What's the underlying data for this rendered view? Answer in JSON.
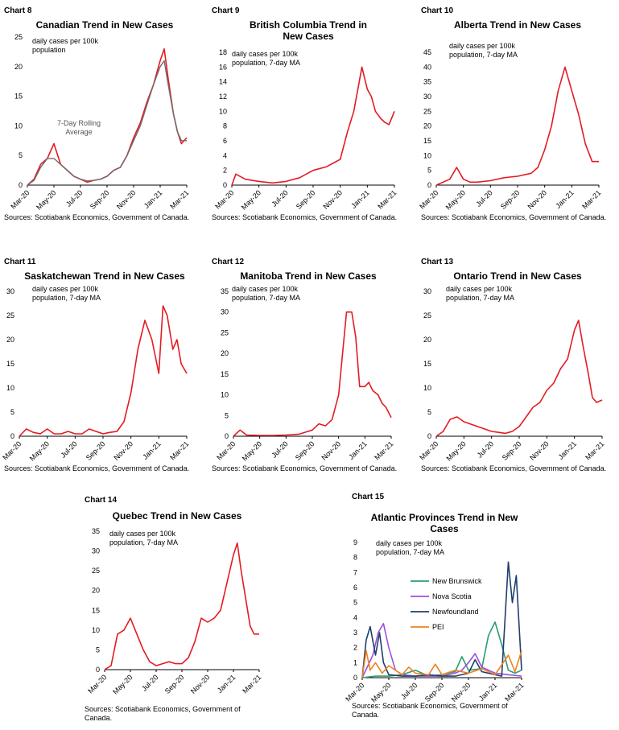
{
  "page": {
    "sources": "Sources: Scotiabank Economics, Government of Canada."
  },
  "chart_data": [
    {
      "id": "chart8",
      "type": "line",
      "chart_label": "Chart 8",
      "title": "Canadian Trend in New Cases",
      "note": "daily cases per 100k population",
      "annotation": "7-Day Rolling Average",
      "ylim": [
        0,
        25
      ],
      "yticks": [
        0,
        5,
        10,
        15,
        20,
        25
      ],
      "xticks": [
        "Mar-20",
        "May-20",
        "Jul-20",
        "Sep-20",
        "Nov-20",
        "Jan-21",
        "Mar-21"
      ],
      "series": [
        {
          "name": "Daily",
          "color": "#e31b23",
          "x": [
            0,
            0.5,
            1,
            1.5,
            2,
            2.5,
            3,
            3.5,
            4,
            4.5,
            5,
            5.5,
            6,
            6.5,
            7,
            7.5,
            8,
            8.5,
            9,
            9.5,
            10,
            10.3,
            10.6,
            11,
            11.3,
            11.6,
            12
          ],
          "values": [
            0,
            1,
            3.5,
            4.5,
            7,
            3.5,
            2.5,
            1.5,
            1,
            0.5,
            0.8,
            1,
            1.5,
            2.5,
            3,
            5,
            8,
            10.5,
            14,
            17,
            21,
            23,
            18,
            12,
            9,
            7,
            8
          ]
        },
        {
          "name": "7-Day Rolling Average",
          "color": "#6e6e6e",
          "x": [
            0,
            0.5,
            1,
            1.5,
            2,
            2.5,
            3,
            3.5,
            4,
            4.5,
            5,
            5.5,
            6,
            6.5,
            7,
            7.5,
            8,
            8.5,
            9,
            9.5,
            10,
            10.3,
            10.6,
            11,
            11.3,
            11.6,
            12
          ],
          "values": [
            0,
            0.8,
            3,
            4.5,
            4.5,
            3.5,
            2.5,
            1.5,
            1,
            0.7,
            0.8,
            1,
            1.5,
            2.5,
            3,
            5,
            7.5,
            10,
            13.5,
            17,
            20,
            21,
            17,
            12,
            9,
            7.5,
            7.5
          ]
        }
      ]
    },
    {
      "id": "chart9",
      "type": "line",
      "chart_label": "Chart 9",
      "title": "British Columbia Trend in New Cases",
      "note": "daily cases per 100k population, 7-day MA",
      "ylim": [
        0,
        18
      ],
      "yticks": [
        0,
        2,
        4,
        6,
        8,
        10,
        12,
        14,
        16,
        18
      ],
      "xticks": [
        "Mar-20",
        "May-20",
        "Jul-20",
        "Sep-20",
        "Nov-20",
        "Jan-21",
        "Mar-21"
      ],
      "series": [
        {
          "name": "BC",
          "color": "#e31b23",
          "x": [
            0,
            0.3,
            1,
            2,
            3,
            4,
            5,
            6,
            7,
            7.5,
            8,
            8.5,
            9,
            9.3,
            9.6,
            10,
            10.3,
            10.6,
            11,
            11.3,
            11.6,
            12
          ],
          "values": [
            0,
            1.5,
            0.8,
            0.5,
            0.3,
            0.5,
            1,
            2,
            2.5,
            3,
            3.5,
            7,
            10,
            13,
            16,
            13,
            12,
            10,
            9,
            8.5,
            8.2,
            10
          ]
        }
      ]
    },
    {
      "id": "chart10",
      "type": "line",
      "chart_label": "Chart 10",
      "title": "Alberta Trend in New Cases",
      "note": "daily cases per 100k population, 7-day MA",
      "ylim": [
        0,
        45
      ],
      "yticks": [
        0,
        5,
        10,
        15,
        20,
        25,
        30,
        35,
        40,
        45
      ],
      "xticks": [
        "Mar-20",
        "May-20",
        "Jul-20",
        "Sep-20",
        "Nov-20",
        "Jan-21",
        "Mar-21"
      ],
      "series": [
        {
          "name": "AB",
          "color": "#e31b23",
          "x": [
            0,
            1,
            1.5,
            2,
            2.5,
            3,
            4,
            5,
            6,
            7,
            7.5,
            8,
            8.5,
            9,
            9.5,
            10,
            10.5,
            11,
            11.5,
            12
          ],
          "values": [
            0,
            2,
            6,
            2,
            1,
            1,
            1.5,
            2.5,
            3,
            4,
            6,
            12,
            20,
            32,
            40,
            32,
            24,
            14,
            8,
            8
          ]
        }
      ]
    },
    {
      "id": "chart11",
      "type": "line",
      "chart_label": "Chart 11",
      "title": "Saskatchewan Trend in New Cases",
      "note": "daily cases per 100k population, 7-day MA",
      "ylim": [
        0,
        30
      ],
      "yticks": [
        0,
        5,
        10,
        15,
        20,
        25,
        30
      ],
      "xticks": [
        "Mar-20",
        "May-20",
        "Jul-20",
        "Sep-20",
        "Nov-20",
        "Jan-21",
        "Mar-21"
      ],
      "series": [
        {
          "name": "SK",
          "color": "#e31b23",
          "x": [
            0,
            0.5,
            1,
            1.5,
            2,
            2.5,
            3,
            3.5,
            4,
            4.5,
            5,
            5.5,
            6,
            6.5,
            7,
            7.5,
            8,
            8.5,
            9,
            9.5,
            10,
            10.3,
            10.6,
            11,
            11.3,
            11.6,
            12
          ],
          "values": [
            0,
            1.5,
            0.8,
            0.5,
            1.5,
            0.5,
            0.5,
            1,
            0.5,
            0.5,
            1.5,
            1,
            0.5,
            0.8,
            1,
            3,
            9,
            18,
            24,
            20,
            13,
            27,
            25,
            18,
            20,
            15,
            13
          ]
        }
      ]
    },
    {
      "id": "chart12",
      "type": "line",
      "chart_label": "Chart 12",
      "title": "Manitoba Trend in New Cases",
      "note": "daily cases per 100k population, 7-day MA",
      "ylim": [
        0,
        35
      ],
      "yticks": [
        0,
        5,
        10,
        15,
        20,
        25,
        30,
        35
      ],
      "xticks": [
        "Mar-20",
        "May-20",
        "Jul-20",
        "Sep-20",
        "Nov-20",
        "Jan-21",
        "Mar-21"
      ],
      "series": [
        {
          "name": "MB",
          "color": "#e31b23",
          "x": [
            0,
            0.5,
            1,
            2,
            3,
            4,
            5,
            6,
            6.5,
            7,
            7.5,
            8,
            8.3,
            8.6,
            9,
            9.3,
            9.6,
            10,
            10.3,
            10.6,
            11,
            11.3,
            11.6,
            12
          ],
          "values": [
            0,
            1.5,
            0.3,
            0.2,
            0.2,
            0.3,
            0.5,
            1.5,
            3,
            2.5,
            4,
            10,
            20,
            30,
            30,
            24,
            12,
            12,
            13,
            11,
            10,
            8,
            7,
            4.5
          ]
        }
      ]
    },
    {
      "id": "chart13",
      "type": "line",
      "chart_label": "Chart 13",
      "title": "Ontario Trend in New Cases",
      "note": "daily cases per 100k population, 7-day MA",
      "ylim": [
        0,
        30
      ],
      "yticks": [
        0,
        5,
        10,
        15,
        20,
        25,
        30
      ],
      "xticks": [
        "Mar-20",
        "May-20",
        "Jul-20",
        "Sep-20",
        "Nov-20",
        "Jan-21",
        "Mar-21"
      ],
      "series": [
        {
          "name": "ON",
          "color": "#e31b23",
          "x": [
            0,
            0.5,
            1,
            1.5,
            2,
            2.5,
            3,
            3.5,
            4,
            4.5,
            5,
            5.5,
            6,
            6.5,
            7,
            7.5,
            8,
            8.5,
            9,
            9.5,
            10,
            10.3,
            10.6,
            11,
            11.3,
            11.6,
            12
          ],
          "values": [
            0,
            1,
            3.5,
            4,
            3,
            2.5,
            2,
            1.5,
            1,
            0.8,
            0.6,
            1,
            2,
            4,
            6,
            7,
            9.5,
            11,
            14,
            16,
            22,
            24,
            19,
            13,
            8,
            7,
            7.5
          ]
        }
      ]
    },
    {
      "id": "chart14",
      "type": "line",
      "chart_label": "Chart 14",
      "title": "Quebec Trend in New Cases",
      "note": "daily cases per 100k population, 7-day MA",
      "ylim": [
        0,
        35
      ],
      "yticks": [
        0,
        5,
        10,
        15,
        20,
        25,
        30,
        35
      ],
      "xticks": [
        "Mar-20",
        "May-20",
        "Jul-20",
        "Sep-20",
        "Nov-20",
        "Jan-21",
        "Mar-21"
      ],
      "series": [
        {
          "name": "QC",
          "color": "#e31b23",
          "x": [
            0,
            0.5,
            1,
            1.5,
            2,
            2.5,
            3,
            3.5,
            4,
            4.5,
            5,
            5.5,
            6,
            6.5,
            7,
            7.5,
            8,
            8.5,
            9,
            9.5,
            10,
            10.3,
            10.6,
            11,
            11.3,
            11.6,
            12
          ],
          "values": [
            0,
            1,
            9,
            10,
            13,
            9,
            5,
            2,
            1,
            1.5,
            2,
            1.5,
            1.5,
            3,
            7,
            13,
            12,
            13,
            15,
            22,
            29,
            32,
            25,
            17,
            11,
            9,
            9
          ]
        }
      ]
    },
    {
      "id": "chart15",
      "type": "line",
      "chart_label": "Chart 15",
      "title": "Atlantic Provinces Trend in New Cases",
      "note": "daily cases per 100k population, 7-day MA",
      "ylim": [
        0,
        9
      ],
      "yticks": [
        0,
        1,
        2,
        3,
        4,
        5,
        6,
        7,
        8,
        9
      ],
      "xticks": [
        "Mar-20",
        "May-20",
        "Jul-20",
        "Sep-20",
        "Nov-20",
        "Jan-21",
        "Mar-21"
      ],
      "legend": [
        "New Brunswick",
        "Nova Scotia",
        "Newfoundland",
        "PEI"
      ],
      "series": [
        {
          "name": "New Brunswick",
          "color": "#2a9d6f",
          "x": [
            0,
            1,
            2,
            3,
            4,
            4.5,
            5,
            6,
            7,
            7.5,
            8,
            9,
            9.5,
            10,
            10.5,
            11,
            11.5,
            12
          ],
          "values": [
            0,
            0.1,
            0.1,
            0.2,
            0.5,
            0.3,
            0.1,
            0.2,
            0.4,
            1.4,
            0.5,
            0.6,
            2.8,
            3.7,
            2.2,
            0.5,
            0.3,
            0.5
          ]
        },
        {
          "name": "Nova Scotia",
          "color": "#9d4edd",
          "x": [
            0,
            0.8,
            1.2,
            1.6,
            2,
            2.5,
            3,
            4,
            5,
            6,
            7,
            7.5,
            8,
            8.5,
            9,
            10,
            11,
            12
          ],
          "values": [
            0,
            1.5,
            3,
            3.6,
            2,
            0.5,
            0.2,
            0.1,
            0.1,
            0.1,
            0.3,
            0.5,
            1,
            1.6,
            0.7,
            0.3,
            0.2,
            0.1
          ]
        },
        {
          "name": "Newfoundland",
          "color": "#1f3d6e",
          "x": [
            0,
            0.3,
            0.6,
            1,
            1.3,
            1.6,
            2,
            3,
            4,
            5,
            6,
            7,
            8,
            8.5,
            9,
            10,
            10.5,
            11,
            11.3,
            11.6,
            12
          ],
          "values": [
            0,
            2.5,
            3.4,
            1.5,
            3,
            1,
            0.2,
            0.1,
            0.1,
            0.2,
            0.1,
            0.1,
            0.3,
            1.2,
            0.4,
            0.2,
            0.1,
            7.7,
            5,
            6.8,
            0.5
          ]
        },
        {
          "name": "PEI",
          "color": "#f0821e",
          "x": [
            0,
            0.3,
            0.6,
            1,
            1.5,
            2,
            3,
            3.5,
            4,
            5,
            5.5,
            6,
            7,
            8,
            9,
            10,
            11,
            11.5,
            12
          ],
          "values": [
            0,
            1.8,
            0.5,
            1,
            0.3,
            0.8,
            0.2,
            0.7,
            0.3,
            0.2,
            0.9,
            0.2,
            0.5,
            0.3,
            0.6,
            0.2,
            1.5,
            0.4,
            1.8
          ]
        }
      ]
    }
  ]
}
